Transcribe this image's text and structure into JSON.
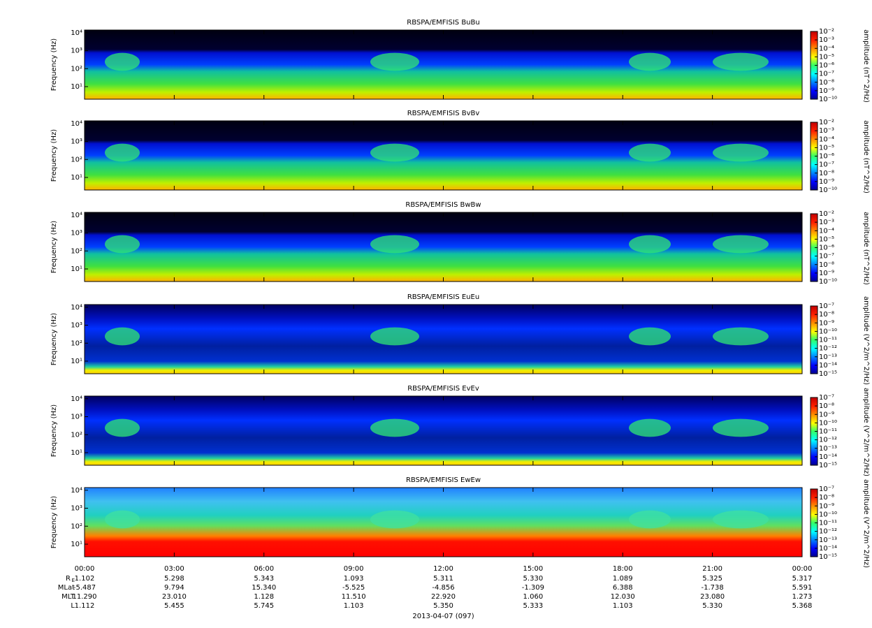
{
  "chart_data": [
    {
      "type": "spectrogram",
      "title": "RBSPA/EMFISIS  BuBu",
      "ylabel": "Frequency (Hz)",
      "ylog": true,
      "ylim": [
        2,
        14000
      ],
      "yticks": [
        {
          "value": 10,
          "label": "10¹"
        },
        {
          "value": 100,
          "label": "10²"
        },
        {
          "value": 1000,
          "label": "10³"
        },
        {
          "value": 10000,
          "label": "10⁴"
        }
      ],
      "zlabel": "amplitude (nT^2/Hz)",
      "zlog": true,
      "zlim": [
        1e-10,
        0.01
      ],
      "zticks": [
        {
          "value": 1e-10,
          "label": "10⁻¹⁰"
        },
        {
          "value": 1e-09,
          "label": "10⁻⁹"
        },
        {
          "value": 1e-08,
          "label": "10⁻⁸"
        },
        {
          "value": 1e-07,
          "label": "10⁻⁷"
        },
        {
          "value": 1e-06,
          "label": "10⁻⁶"
        },
        {
          "value": 1e-05,
          "label": "10⁻⁵"
        },
        {
          "value": 0.0001,
          "label": "10⁻⁴"
        },
        {
          "value": 0.001,
          "label": "10⁻³"
        },
        {
          "value": 0.01,
          "label": "10⁻²"
        }
      ]
    },
    {
      "type": "spectrogram",
      "title": "RBSPA/EMFISIS  BvBv",
      "ylabel": "Frequency (Hz)",
      "ylog": true,
      "ylim": [
        2,
        14000
      ],
      "yticks": [
        {
          "value": 10,
          "label": "10¹"
        },
        {
          "value": 100,
          "label": "10²"
        },
        {
          "value": 1000,
          "label": "10³"
        },
        {
          "value": 10000,
          "label": "10⁴"
        }
      ],
      "zlabel": "amplitude (nT^2/Hz)",
      "zlog": true,
      "zlim": [
        1e-10,
        0.01
      ],
      "zticks": [
        {
          "value": 1e-10,
          "label": "10⁻¹⁰"
        },
        {
          "value": 1e-09,
          "label": "10⁻⁹"
        },
        {
          "value": 1e-08,
          "label": "10⁻⁸"
        },
        {
          "value": 1e-07,
          "label": "10⁻⁷"
        },
        {
          "value": 1e-06,
          "label": "10⁻⁶"
        },
        {
          "value": 1e-05,
          "label": "10⁻⁵"
        },
        {
          "value": 0.0001,
          "label": "10⁻⁴"
        },
        {
          "value": 0.001,
          "label": "10⁻³"
        },
        {
          "value": 0.01,
          "label": "10⁻²"
        }
      ]
    },
    {
      "type": "spectrogram",
      "title": "RBSPA/EMFISIS  BwBw",
      "ylabel": "Frequency (Hz)",
      "ylog": true,
      "ylim": [
        2,
        14000
      ],
      "yticks": [
        {
          "value": 10,
          "label": "10¹"
        },
        {
          "value": 100,
          "label": "10²"
        },
        {
          "value": 1000,
          "label": "10³"
        },
        {
          "value": 10000,
          "label": "10⁴"
        }
      ],
      "zlabel": "amplitude (nT^2/Hz)",
      "zlog": true,
      "zlim": [
        1e-10,
        0.01
      ],
      "zticks": [
        {
          "value": 1e-10,
          "label": "10⁻¹⁰"
        },
        {
          "value": 1e-09,
          "label": "10⁻⁹"
        },
        {
          "value": 1e-08,
          "label": "10⁻⁸"
        },
        {
          "value": 1e-07,
          "label": "10⁻⁷"
        },
        {
          "value": 1e-06,
          "label": "10⁻⁶"
        },
        {
          "value": 1e-05,
          "label": "10⁻⁵"
        },
        {
          "value": 0.0001,
          "label": "10⁻⁴"
        },
        {
          "value": 0.001,
          "label": "10⁻³"
        },
        {
          "value": 0.01,
          "label": "10⁻²"
        }
      ]
    },
    {
      "type": "spectrogram",
      "title": "RBSPA/EMFISIS  EuEu",
      "ylabel": "Frequency (Hz)",
      "ylog": true,
      "ylim": [
        2,
        14000
      ],
      "yticks": [
        {
          "value": 10,
          "label": "10¹"
        },
        {
          "value": 100,
          "label": "10²"
        },
        {
          "value": 1000,
          "label": "10³"
        },
        {
          "value": 10000,
          "label": "10⁴"
        }
      ],
      "zlabel": "amplitude (V^2/m^2/Hz)",
      "zlog": true,
      "zlim": [
        1e-15,
        1e-07
      ],
      "zticks": [
        {
          "value": 1e-15,
          "label": "10⁻¹⁵"
        },
        {
          "value": 1e-14,
          "label": "10⁻¹⁴"
        },
        {
          "value": 1e-13,
          "label": "10⁻¹³"
        },
        {
          "value": 1e-12,
          "label": "10⁻¹²"
        },
        {
          "value": 1e-11,
          "label": "10⁻¹¹"
        },
        {
          "value": 1e-10,
          "label": "10⁻¹⁰"
        },
        {
          "value": 1e-09,
          "label": "10⁻⁹"
        },
        {
          "value": 1e-08,
          "label": "10⁻⁸"
        },
        {
          "value": 1e-07,
          "label": "10⁻⁷"
        }
      ]
    },
    {
      "type": "spectrogram",
      "title": "RBSPA/EMFISIS  EvEv",
      "ylabel": "Frequency (Hz)",
      "ylog": true,
      "ylim": [
        2,
        14000
      ],
      "yticks": [
        {
          "value": 10,
          "label": "10¹"
        },
        {
          "value": 100,
          "label": "10²"
        },
        {
          "value": 1000,
          "label": "10³"
        },
        {
          "value": 10000,
          "label": "10⁴"
        }
      ],
      "zlabel": "amplitude (V^2/m^2/Hz)",
      "zlog": true,
      "zlim": [
        1e-15,
        1e-07
      ],
      "zticks": [
        {
          "value": 1e-15,
          "label": "10⁻¹⁵"
        },
        {
          "value": 1e-14,
          "label": "10⁻¹⁴"
        },
        {
          "value": 1e-13,
          "label": "10⁻¹³"
        },
        {
          "value": 1e-12,
          "label": "10⁻¹²"
        },
        {
          "value": 1e-11,
          "label": "10⁻¹¹"
        },
        {
          "value": 1e-10,
          "label": "10⁻¹⁰"
        },
        {
          "value": 1e-09,
          "label": "10⁻⁹"
        },
        {
          "value": 1e-08,
          "label": "10⁻⁸"
        },
        {
          "value": 1e-07,
          "label": "10⁻⁷"
        }
      ]
    },
    {
      "type": "spectrogram",
      "title": "RBSPA/EMFISIS  EwEw",
      "ylabel": "Frequency (Hz)",
      "ylog": true,
      "ylim": [
        2,
        14000
      ],
      "yticks": [
        {
          "value": 10,
          "label": "10¹"
        },
        {
          "value": 100,
          "label": "10²"
        },
        {
          "value": 1000,
          "label": "10³"
        },
        {
          "value": 10000,
          "label": "10⁴"
        }
      ],
      "zlabel": "amplitude (V^2/m^2/Hz)",
      "zlog": true,
      "zlim": [
        1e-15,
        1e-07
      ],
      "zticks": [
        {
          "value": 1e-15,
          "label": "10⁻¹⁵"
        },
        {
          "value": 1e-14,
          "label": "10⁻¹⁴"
        },
        {
          "value": 1e-13,
          "label": "10⁻¹³"
        },
        {
          "value": 1e-12,
          "label": "10⁻¹²"
        },
        {
          "value": 1e-11,
          "label": "10⁻¹¹"
        },
        {
          "value": 1e-10,
          "label": "10⁻¹⁰"
        },
        {
          "value": 1e-09,
          "label": "10⁻⁹"
        },
        {
          "value": 1e-08,
          "label": "10⁻⁸"
        },
        {
          "value": 1e-07,
          "label": "10⁻⁷"
        }
      ],
      "xlim": [
        0,
        24
      ],
      "xticks": [
        {
          "value": 0,
          "label": "00:00"
        },
        {
          "value": 3,
          "label": "03:00"
        },
        {
          "value": 6,
          "label": "06:00"
        },
        {
          "value": 9,
          "label": "09:00"
        },
        {
          "value": 12,
          "label": "12:00"
        },
        {
          "value": 15,
          "label": "15:00"
        },
        {
          "value": 18,
          "label": "18:00"
        },
        {
          "value": 21,
          "label": "21:00"
        },
        {
          "value": 24,
          "label": "00:00"
        }
      ],
      "xlabel": "2013-04-07 (097)"
    }
  ],
  "ephemeris": [
    {
      "name": "R",
      "sub": "E",
      "values": [
        "1.102",
        "5.298",
        "5.343",
        "1.093",
        "5.311",
        "5.330",
        "1.089",
        "5.325",
        "5.317"
      ]
    },
    {
      "name": "MLat",
      "values": [
        "-5.487",
        "9.794",
        "15.340",
        "-5.525",
        "-4.856",
        "-1.309",
        "6.388",
        "-1.738",
        "5.591"
      ]
    },
    {
      "name": "MLT",
      "values": [
        "11.290",
        "23.010",
        "1.128",
        "11.510",
        "22.920",
        "1.060",
        "12.030",
        "23.080",
        "1.273"
      ]
    },
    {
      "name": "L",
      "values": [
        "1.112",
        "5.455",
        "5.745",
        "1.103",
        "5.350",
        "5.333",
        "1.103",
        "5.330",
        "5.368"
      ]
    }
  ]
}
